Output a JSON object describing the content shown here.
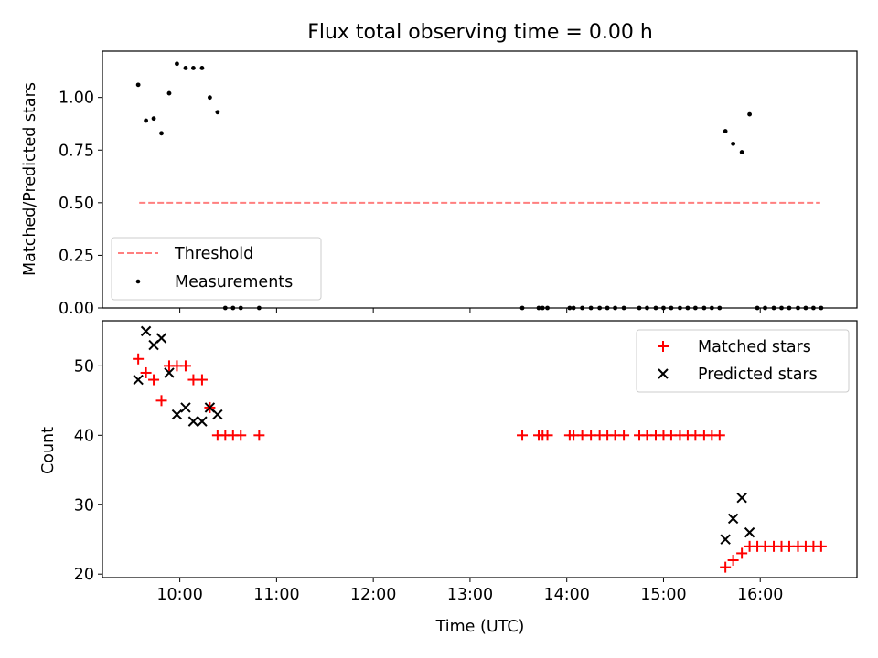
{
  "chart_data": [
    {
      "type": "scatter",
      "title": "Flux total observing time = 0.00 h",
      "xlabel": "",
      "ylabel": "Matched/Predicted stars",
      "xlim": [
        9.2,
        17.0
      ],
      "ylim": [
        0.0,
        1.22
      ],
      "yticks": [
        0.0,
        0.25,
        0.5,
        0.75,
        1.0
      ],
      "ytick_labels": [
        "0.00",
        "0.25",
        "0.50",
        "0.75",
        "1.00"
      ],
      "xticks": [
        10,
        11,
        12,
        13,
        14,
        15,
        16
      ],
      "legend_placement": "lower-left",
      "grid": false,
      "threshold": {
        "name": "Threshold",
        "color": "#ff7f7f",
        "y": 0.5,
        "x": [
          9.58,
          16.62
        ]
      },
      "measurements": {
        "name": "Measurements",
        "color": "#000000",
        "points": [
          [
            9.57,
            1.06
          ],
          [
            9.65,
            0.89
          ],
          [
            9.73,
            0.9
          ],
          [
            9.81,
            0.83
          ],
          [
            9.89,
            1.02
          ],
          [
            9.97,
            1.16
          ],
          [
            10.06,
            1.14
          ],
          [
            10.14,
            1.14
          ],
          [
            10.23,
            1.14
          ],
          [
            10.31,
            1.0
          ],
          [
            10.39,
            0.93
          ],
          [
            10.47,
            0.0
          ],
          [
            10.55,
            0.0
          ],
          [
            10.63,
            0.0
          ],
          [
            10.82,
            0.0
          ],
          [
            13.54,
            0.0
          ],
          [
            13.71,
            0.0
          ],
          [
            13.75,
            0.0
          ],
          [
            13.8,
            0.0
          ],
          [
            14.03,
            0.0
          ],
          [
            14.07,
            0.0
          ],
          [
            14.16,
            0.0
          ],
          [
            14.25,
            0.0
          ],
          [
            14.34,
            0.0
          ],
          [
            14.42,
            0.0
          ],
          [
            14.5,
            0.0
          ],
          [
            14.59,
            0.0
          ],
          [
            14.75,
            0.0
          ],
          [
            14.83,
            0.0
          ],
          [
            14.92,
            0.0
          ],
          [
            15.0,
            0.0
          ],
          [
            15.08,
            0.0
          ],
          [
            15.17,
            0.0
          ],
          [
            15.25,
            0.0
          ],
          [
            15.33,
            0.0
          ],
          [
            15.42,
            0.0
          ],
          [
            15.5,
            0.0
          ],
          [
            15.58,
            0.0
          ],
          [
            15.64,
            0.84
          ],
          [
            15.72,
            0.78
          ],
          [
            15.81,
            0.74
          ],
          [
            15.89,
            0.92
          ],
          [
            15.97,
            0.0
          ],
          [
            16.05,
            0.0
          ],
          [
            16.14,
            0.0
          ],
          [
            16.22,
            0.0
          ],
          [
            16.3,
            0.0
          ],
          [
            16.39,
            0.0
          ],
          [
            16.47,
            0.0
          ],
          [
            16.55,
            0.0
          ],
          [
            16.63,
            0.0
          ]
        ]
      }
    },
    {
      "type": "scatter",
      "title": "",
      "xlabel": "Time (UTC)",
      "ylabel": "Count",
      "xlim": [
        9.2,
        17.0
      ],
      "ylim": [
        19.5,
        56.5
      ],
      "yticks": [
        20,
        30,
        40,
        50
      ],
      "ytick_labels": [
        "20",
        "30",
        "40",
        "50"
      ],
      "xticks": [
        10,
        11,
        12,
        13,
        14,
        15,
        16
      ],
      "xtick_labels": [
        "10:00",
        "11:00",
        "12:00",
        "13:00",
        "14:00",
        "15:00",
        "16:00"
      ],
      "legend_placement": "top-right",
      "grid": false,
      "series": [
        {
          "name": "Matched stars",
          "marker": "plus",
          "color": "#ff0000",
          "points": [
            [
              9.57,
              51
            ],
            [
              9.65,
              49
            ],
            [
              9.73,
              48
            ],
            [
              9.81,
              45
            ],
            [
              9.89,
              50
            ],
            [
              9.97,
              50
            ],
            [
              10.06,
              50
            ],
            [
              10.14,
              48
            ],
            [
              10.23,
              48
            ],
            [
              10.31,
              44
            ],
            [
              10.39,
              40
            ],
            [
              10.47,
              40
            ],
            [
              10.55,
              40
            ],
            [
              10.63,
              40
            ],
            [
              10.82,
              40
            ],
            [
              13.54,
              40
            ],
            [
              13.71,
              40
            ],
            [
              13.75,
              40
            ],
            [
              13.8,
              40
            ],
            [
              14.03,
              40
            ],
            [
              14.07,
              40
            ],
            [
              14.16,
              40
            ],
            [
              14.25,
              40
            ],
            [
              14.34,
              40
            ],
            [
              14.42,
              40
            ],
            [
              14.5,
              40
            ],
            [
              14.59,
              40
            ],
            [
              14.75,
              40
            ],
            [
              14.83,
              40
            ],
            [
              14.92,
              40
            ],
            [
              15.0,
              40
            ],
            [
              15.08,
              40
            ],
            [
              15.17,
              40
            ],
            [
              15.25,
              40
            ],
            [
              15.33,
              40
            ],
            [
              15.42,
              40
            ],
            [
              15.5,
              40
            ],
            [
              15.58,
              40
            ],
            [
              15.64,
              21
            ],
            [
              15.72,
              22
            ],
            [
              15.81,
              23
            ],
            [
              15.89,
              24
            ],
            [
              15.97,
              24
            ],
            [
              16.05,
              24
            ],
            [
              16.14,
              24
            ],
            [
              16.22,
              24
            ],
            [
              16.3,
              24
            ],
            [
              16.39,
              24
            ],
            [
              16.47,
              24
            ],
            [
              16.55,
              24
            ],
            [
              16.63,
              24
            ]
          ]
        },
        {
          "name": "Predicted stars",
          "marker": "x",
          "color": "#000000",
          "points": [
            [
              9.57,
              48
            ],
            [
              9.65,
              55
            ],
            [
              9.73,
              53
            ],
            [
              9.81,
              54
            ],
            [
              9.89,
              49
            ],
            [
              9.97,
              43
            ],
            [
              10.06,
              44
            ],
            [
              10.14,
              42
            ],
            [
              10.23,
              42
            ],
            [
              10.31,
              44
            ],
            [
              10.39,
              43
            ],
            [
              15.64,
              25
            ],
            [
              15.72,
              28
            ],
            [
              15.81,
              31
            ],
            [
              15.89,
              26
            ]
          ]
        }
      ]
    }
  ]
}
